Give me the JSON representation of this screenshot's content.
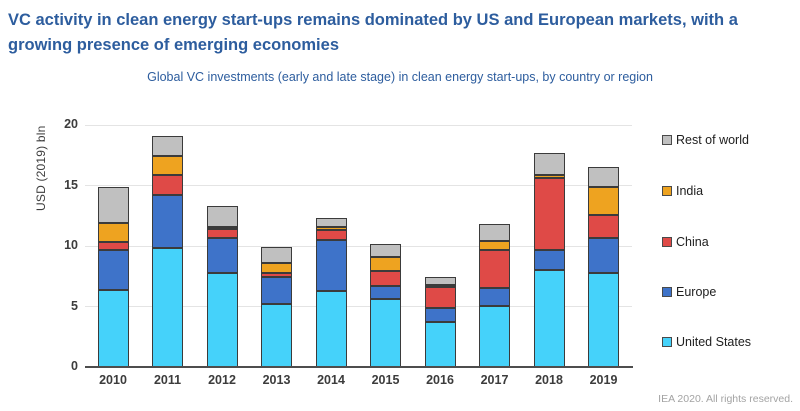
{
  "page": {
    "title_line1": "VC activity in clean energy start-ups remains dominated by US and European markets, with a",
    "title_line2": "growing presence of emerging economies",
    "subtitle": "Global VC investments (early and late stage) in clean energy start-ups, by country or region",
    "footer": "IEA 2020. All rights reserved."
  },
  "colors": {
    "title_blue": "#2d5d9e",
    "united_states": "#45d2fa",
    "europe": "#3e73c9",
    "china": "#df4a47",
    "india": "#eea320",
    "rest_of_world": "#c0c0c0",
    "segment_outline": "#3b3b3b",
    "gridline": "#e4e4e4",
    "axis_line": "#4d4d4d",
    "axis_text": "#3c3c3c",
    "footer_grey": "#a3a3a3"
  },
  "chart_data": {
    "type": "bar",
    "stacked": true,
    "title": "Global VC investments (early and late stage) in clean energy start-ups, by country or region",
    "xlabel": "",
    "ylabel": "USD (2019) bln",
    "ylim": [
      0,
      20
    ],
    "yticks": [
      0,
      5,
      10,
      15,
      20
    ],
    "grid": true,
    "legend_position": "right",
    "categories": [
      "2010",
      "2011",
      "2012",
      "2013",
      "2014",
      "2015",
      "2016",
      "2017",
      "2018",
      "2019"
    ],
    "series": [
      {
        "name": "United States",
        "color": "#45d2fa",
        "values": [
          6.4,
          9.8,
          7.8,
          5.2,
          6.3,
          5.6,
          3.7,
          5.0,
          8.0,
          7.8
        ]
      },
      {
        "name": "Europe",
        "color": "#3e73c9",
        "values": [
          3.3,
          4.4,
          2.9,
          2.2,
          4.2,
          1.1,
          1.2,
          1.5,
          1.7,
          2.9
        ]
      },
      {
        "name": "China",
        "color": "#df4a47",
        "values": [
          0.6,
          1.7,
          0.7,
          0.4,
          0.8,
          1.2,
          1.7,
          3.2,
          5.9,
          1.9
        ]
      },
      {
        "name": "India",
        "color": "#eea320",
        "values": [
          1.6,
          1.5,
          0.2,
          0.8,
          0.3,
          1.2,
          0.2,
          0.7,
          0.3,
          2.3
        ]
      },
      {
        "name": "Rest of world",
        "color": "#c0c0c0",
        "values": [
          3.0,
          1.7,
          1.7,
          1.3,
          0.7,
          1.1,
          0.6,
          1.4,
          1.8,
          1.6
        ]
      }
    ],
    "totals": [
      14.9,
      19.1,
      13.3,
      9.9,
      12.3,
      10.2,
      7.4,
      11.8,
      17.7,
      16.5
    ],
    "legend_order_top_to_bottom": [
      "Rest of world",
      "India",
      "China",
      "Europe",
      "United States"
    ]
  }
}
